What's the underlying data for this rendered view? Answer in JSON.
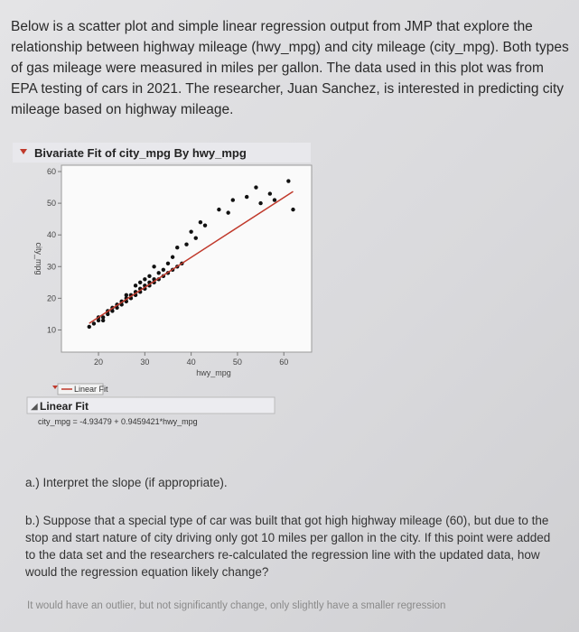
{
  "intro": "Below is a scatter plot and simple linear regression output from JMP that explore the relationship between highway mileage (hwy_mpg) and city mileage (city_mpg). Both types of gas mileage were measured in miles per gallon. The data used in this plot was from EPA testing of cars in 2021. The researcher, Juan Sanchez, is interested in predicting city mileage based on highway mileage.",
  "report": {
    "title": "Bivariate Fit of city_mpg By hwy_mpg",
    "chart_data": {
      "type": "scatter",
      "x_label": "hwy_mpg",
      "y_label": "city_mpg",
      "color": "#111111",
      "x": [
        18,
        19,
        20,
        20,
        21,
        21,
        22,
        22,
        23,
        23,
        24,
        24,
        25,
        25,
        26,
        26,
        26,
        27,
        27,
        28,
        28,
        28,
        29,
        29,
        29,
        30,
        30,
        30,
        31,
        31,
        31,
        32,
        32,
        32,
        33,
        33,
        34,
        34,
        35,
        35,
        36,
        36,
        37,
        37,
        38,
        39,
        40,
        41,
        42,
        43,
        46,
        48,
        49,
        52,
        54,
        55,
        57,
        58,
        61,
        62
      ],
      "y": [
        11,
        12,
        13,
        14,
        13,
        14,
        15,
        16,
        16,
        17,
        17,
        18,
        18,
        19,
        19,
        20,
        21,
        20,
        21,
        21,
        22,
        24,
        22,
        23,
        25,
        23,
        24,
        26,
        24,
        25,
        27,
        25,
        26,
        30,
        26,
        28,
        27,
        29,
        28,
        31,
        29,
        33,
        30,
        36,
        31,
        37,
        41,
        39,
        44,
        43,
        48,
        47,
        51,
        52,
        55,
        50,
        53,
        51,
        57,
        48
      ],
      "xlim": [
        12,
        66
      ],
      "ylim": [
        3,
        62
      ],
      "xticks": [
        20,
        30,
        40,
        50,
        60
      ],
      "yticks": [
        10,
        20,
        30,
        40,
        50,
        60
      ],
      "fit": {
        "intercept": -4.93479,
        "slope": 0.9459421,
        "color": "#c0392b"
      }
    },
    "legend": "Linear Fit",
    "fit_title": "Linear Fit",
    "equation": "city_mpg = -4.93479 + 0.9459421*hwy_mpg"
  },
  "questions": [
    "a.) Interpret the slope (if appropriate).",
    "b.) Suppose that a special type of car was built that got high highway mileage (60), but due to the stop and start nature of city driving only got 10 miles per gallon in the city. If this point were added to the data set and the researchers re-calculated the regression line with the updated data, how would the regression equation likely change?"
  ],
  "answer": "It would have an outlier, but not significantly change, only slightly have a smaller regression"
}
